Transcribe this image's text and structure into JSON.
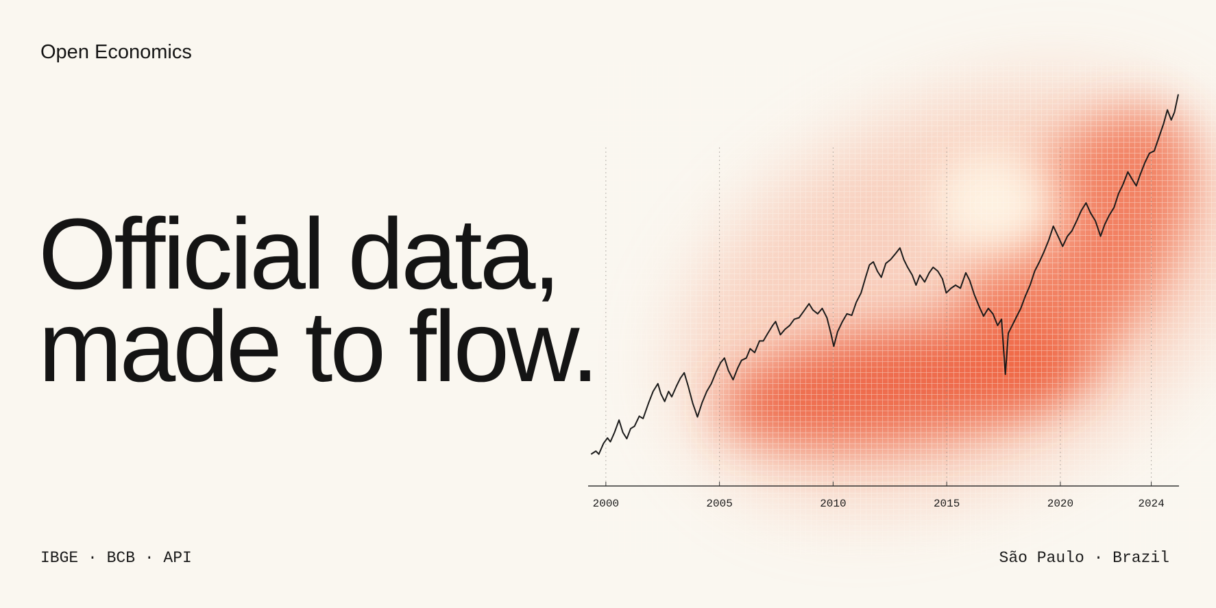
{
  "brand": "Open Economics",
  "headline": [
    "Official data,",
    "made to flow."
  ],
  "footer": {
    "left": "IBGE · BCB · API",
    "right": "São Paulo · Brazil"
  },
  "chart_data": {
    "type": "line",
    "color": "#1a1a1a",
    "grid": true,
    "xlim": [
      1999.22,
      2025.22
    ],
    "ylim": [
      0,
      105
    ],
    "xticks": [
      2000,
      2005,
      2010,
      2015,
      2020,
      2024
    ],
    "x": [
      1999.35,
      1999.56,
      1999.69,
      1999.9,
      2000.07,
      2000.2,
      2000.38,
      2000.58,
      2000.75,
      2000.92,
      2001.09,
      2001.26,
      2001.47,
      2001.64,
      2001.88,
      2002.08,
      2002.29,
      2002.42,
      2002.59,
      2002.76,
      2002.9,
      2003.11,
      2003.28,
      2003.45,
      2003.62,
      2003.82,
      2004.03,
      2004.23,
      2004.44,
      2004.64,
      2004.85,
      2005.05,
      2005.22,
      2005.39,
      2005.6,
      2005.8,
      2005.97,
      2006.18,
      2006.35,
      2006.55,
      2006.76,
      2006.93,
      2007.13,
      2007.34,
      2007.47,
      2007.68,
      2007.88,
      2008.09,
      2008.29,
      2008.5,
      2008.7,
      2008.94,
      2009.11,
      2009.32,
      2009.52,
      2009.73,
      2009.9,
      2010.03,
      2010.2,
      2010.41,
      2010.61,
      2010.82,
      2011.02,
      2011.23,
      2011.43,
      2011.6,
      2011.77,
      2011.95,
      2012.12,
      2012.32,
      2012.53,
      2012.73,
      2012.94,
      2013.11,
      2013.28,
      2013.48,
      2013.65,
      2013.82,
      2014.03,
      2014.23,
      2014.4,
      2014.61,
      2014.81,
      2014.98,
      2015.19,
      2015.39,
      2015.6,
      2015.84,
      2016.01,
      2016.21,
      2016.42,
      2016.62,
      2016.83,
      2017.03,
      2017.24,
      2017.41,
      2017.58,
      2017.71,
      2017.88,
      2018.05,
      2018.26,
      2018.46,
      2018.67,
      2018.87,
      2019.08,
      2019.28,
      2019.49,
      2019.69,
      2019.9,
      2020.1,
      2020.31,
      2020.51,
      2020.72,
      2020.92,
      2021.13,
      2021.33,
      2021.54,
      2021.77,
      2021.95,
      2022.15,
      2022.36,
      2022.56,
      2022.76,
      2022.97,
      2023.17,
      2023.34,
      2023.52,
      2023.72,
      2023.92,
      2024.13,
      2024.33,
      2024.54,
      2024.71,
      2024.88,
      2025.02,
      2025.19
    ],
    "values": [
      8.2,
      9,
      8.2,
      11,
      12.4,
      11.4,
      13.8,
      17,
      13.8,
      12.2,
      14.8,
      15.4,
      18,
      17.4,
      21.4,
      24.4,
      26.4,
      23.8,
      21.8,
      24.4,
      23,
      25.8,
      27.8,
      29.2,
      25.8,
      21.4,
      17.8,
      21.4,
      24.4,
      26.4,
      29.4,
      31.8,
      33,
      29.8,
      27.4,
      30.4,
      32.4,
      33,
      35.4,
      34.4,
      37.4,
      37.4,
      39.4,
      41.4,
      42.4,
      39,
      40.4,
      41.4,
      43,
      43.4,
      45,
      47,
      45.4,
      44.4,
      45.8,
      43.4,
      39.4,
      36,
      39.8,
      42.4,
      44.4,
      44,
      47.4,
      49.8,
      53.8,
      57,
      57.8,
      55.4,
      53.8,
      57.4,
      58.4,
      59.8,
      61.4,
      58.4,
      56.4,
      54.4,
      51.8,
      54.4,
      52.6,
      55,
      56.4,
      55.4,
      53.4,
      49.8,
      51,
      51.8,
      51,
      55,
      53,
      49.4,
      46.4,
      43.8,
      45.8,
      44.4,
      41.4,
      43,
      28.8,
      39.4,
      41.4,
      43.4,
      45.8,
      49,
      51.8,
      55.4,
      57.8,
      60.4,
      63.4,
      67,
      64.4,
      61.8,
      64.4,
      65.8,
      68.4,
      71,
      73,
      70.4,
      68.4,
      64.4,
      67.4,
      69.8,
      71.8,
      75.4,
      77.8,
      81,
      79,
      77.4,
      80.4,
      83.4,
      85.8,
      86.4,
      89.8,
      93.4,
      97,
      94.4,
      96.4,
      101
    ]
  }
}
